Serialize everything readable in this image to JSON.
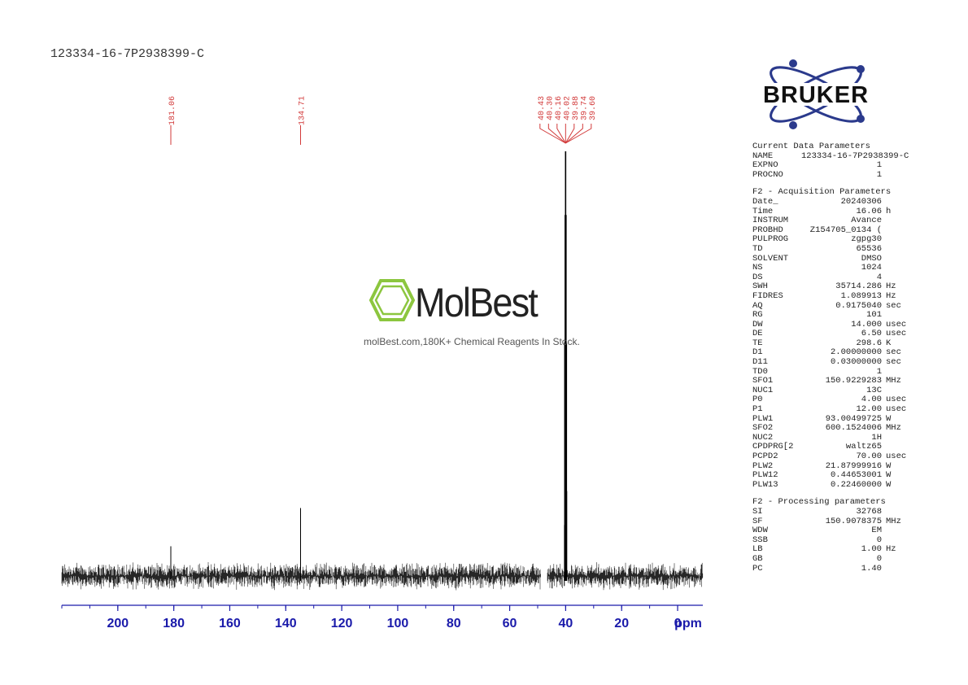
{
  "sample_title": "123334-16-7P2938399-C",
  "brand": {
    "logo_text": "BRUKER",
    "accent_color": "#2b3a8c",
    "dot_color": "#2b3a8c"
  },
  "watermark": {
    "logo_text": "MolBest",
    "tagline": "molBest.com,180K+ Chemical Reagents In Stock.",
    "icon_color": "#8cc63f"
  },
  "chart_data": {
    "type": "line",
    "title": "123334-16-7P2938399-C",
    "xlabel": "ppm",
    "ylabel": "",
    "xlim": [
      220,
      -9
    ],
    "x_ticks": [
      200,
      180,
      160,
      140,
      120,
      100,
      80,
      60,
      40,
      20,
      0
    ],
    "x_tick_labels": [
      "200",
      "180",
      "160",
      "140",
      "120",
      "100",
      "80",
      "60",
      "40",
      "20",
      "0"
    ],
    "axis_color": "#1a1aaa",
    "peak_label_color": "#d23a3a",
    "spectrum_color": "#000000",
    "grid": false,
    "legend": "none",
    "series": [
      {
        "peaks": [
          {
            "ppm": 181.06,
            "label": "181.06",
            "rel_intensity": 0.07
          },
          {
            "ppm": 134.71,
            "label": "134.71",
            "rel_intensity": 0.16
          },
          {
            "ppm": 40.43,
            "label": "40.43",
            "rel_intensity": 0.12
          },
          {
            "ppm": 40.3,
            "label": "40.30",
            "rel_intensity": 0.55
          },
          {
            "ppm": 40.16,
            "label": "40.16",
            "rel_intensity": 0.85
          },
          {
            "ppm": 40.02,
            "label": "40.02",
            "rel_intensity": 1.0
          },
          {
            "ppm": 39.88,
            "label": "39.88",
            "rel_intensity": 0.85
          },
          {
            "ppm": 39.74,
            "label": "39.74",
            "rel_intensity": 0.55
          },
          {
            "ppm": 39.6,
            "label": "39.60",
            "rel_intensity": 0.2
          }
        ]
      }
    ]
  },
  "parameters": {
    "current": {
      "heading": "Current Data Parameters",
      "rows": [
        {
          "name": "NAME",
          "value": "123334-16-7P2938399-C",
          "unit": ""
        },
        {
          "name": "EXPNO",
          "value": "1",
          "unit": ""
        },
        {
          "name": "PROCNO",
          "value": "1",
          "unit": ""
        }
      ]
    },
    "acquisition": {
      "heading": "F2 - Acquisition Parameters",
      "rows": [
        {
          "name": "Date_",
          "value": "20240306",
          "unit": ""
        },
        {
          "name": "Time",
          "value": "16.06",
          "unit": "h"
        },
        {
          "name": "INSTRUM",
          "value": "Avance",
          "unit": ""
        },
        {
          "name": "PROBHD",
          "value": "Z154705_0134 (",
          "unit": ""
        },
        {
          "name": "PULPROG",
          "value": "zgpg30",
          "unit": ""
        },
        {
          "name": "TD",
          "value": "65536",
          "unit": ""
        },
        {
          "name": "SOLVENT",
          "value": "DMSO",
          "unit": ""
        },
        {
          "name": "NS",
          "value": "1024",
          "unit": ""
        },
        {
          "name": "DS",
          "value": "4",
          "unit": ""
        },
        {
          "name": "SWH",
          "value": "35714.286",
          "unit": "Hz"
        },
        {
          "name": "FIDRES",
          "value": "1.089913",
          "unit": "Hz"
        },
        {
          "name": "AQ",
          "value": "0.9175040",
          "unit": "sec"
        },
        {
          "name": "RG",
          "value": "101",
          "unit": ""
        },
        {
          "name": "DW",
          "value": "14.000",
          "unit": "usec"
        },
        {
          "name": "DE",
          "value": "6.50",
          "unit": "usec"
        },
        {
          "name": "TE",
          "value": "298.6",
          "unit": "K"
        },
        {
          "name": "D1",
          "value": "2.00000000",
          "unit": "sec"
        },
        {
          "name": "D11",
          "value": "0.03000000",
          "unit": "sec"
        },
        {
          "name": "TD0",
          "value": "1",
          "unit": ""
        },
        {
          "name": "SFO1",
          "value": "150.9229283",
          "unit": "MHz"
        },
        {
          "name": "NUC1",
          "value": "13C",
          "unit": ""
        },
        {
          "name": "P0",
          "value": "4.00",
          "unit": "usec"
        },
        {
          "name": "P1",
          "value": "12.00",
          "unit": "usec"
        },
        {
          "name": "PLW1",
          "value": "93.00499725",
          "unit": "W"
        },
        {
          "name": "SFO2",
          "value": "600.1524006",
          "unit": "MHz"
        },
        {
          "name": "NUC2",
          "value": "1H",
          "unit": ""
        },
        {
          "name": "CPDPRG[2",
          "value": "waltz65",
          "unit": ""
        },
        {
          "name": "PCPD2",
          "value": "70.00",
          "unit": "usec"
        },
        {
          "name": "PLW2",
          "value": "21.87999916",
          "unit": "W"
        },
        {
          "name": "PLW12",
          "value": "0.44653001",
          "unit": "W"
        },
        {
          "name": "PLW13",
          "value": "0.22460000",
          "unit": "W"
        }
      ]
    },
    "processing": {
      "heading": "F2 - Processing parameters",
      "rows": [
        {
          "name": "SI",
          "value": "32768",
          "unit": ""
        },
        {
          "name": "SF",
          "value": "150.9078375",
          "unit": "MHz"
        },
        {
          "name": "WDW",
          "value": "EM",
          "unit": ""
        },
        {
          "name": "SSB",
          "value": "0",
          "unit": ""
        },
        {
          "name": "LB",
          "value": "1.00",
          "unit": "Hz"
        },
        {
          "name": "GB",
          "value": "0",
          "unit": ""
        },
        {
          "name": "PC",
          "value": "1.40",
          "unit": ""
        }
      ]
    }
  }
}
